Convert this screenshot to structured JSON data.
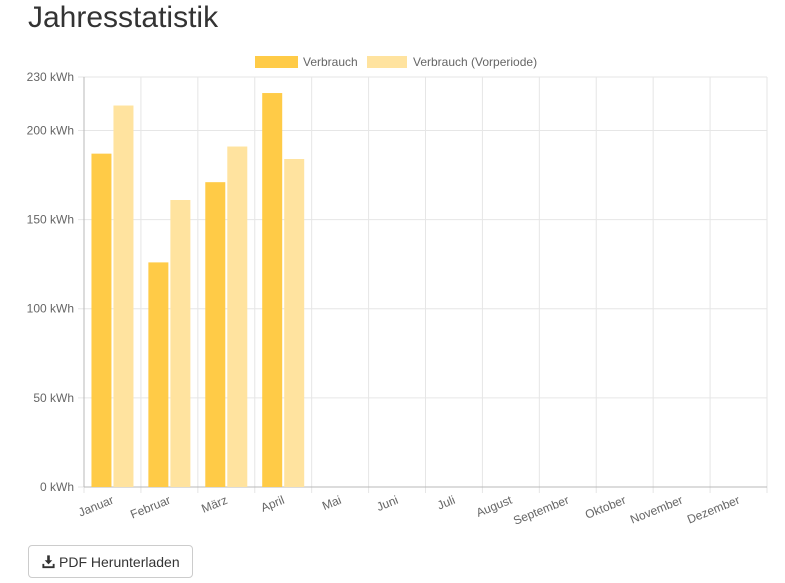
{
  "page": {
    "title": "Jahresstatistik"
  },
  "actions": {
    "pdf_label": "PDF Herunterladen",
    "pdf_icon": "download-icon"
  },
  "colors": {
    "current": "#ffcb47",
    "previous": "#ffe39f",
    "grid": "#e6e6e6",
    "axis": "#b8b8b8"
  },
  "chart_data": {
    "type": "bar",
    "categories": [
      "Januar",
      "Februar",
      "März",
      "April",
      "Mai",
      "Juni",
      "Juli",
      "August",
      "September",
      "Oktober",
      "November",
      "Dezember"
    ],
    "series": [
      {
        "name": "Verbrauch",
        "values": [
          187,
          126,
          171,
          221,
          null,
          null,
          null,
          null,
          null,
          null,
          null,
          null
        ]
      },
      {
        "name": "Verbrauch (Vorperiode)",
        "values": [
          214,
          161,
          191,
          184,
          null,
          null,
          null,
          null,
          null,
          null,
          null,
          null
        ]
      }
    ],
    "y_ticks": [
      0,
      50,
      100,
      150,
      200,
      230
    ],
    "y_tick_labels": [
      "0 kWh",
      "50 kWh",
      "100 kWh",
      "150 kWh",
      "200 kWh",
      "230 kWh"
    ],
    "ylim": [
      0,
      230
    ],
    "grid": true,
    "legend_position": "top-center"
  }
}
